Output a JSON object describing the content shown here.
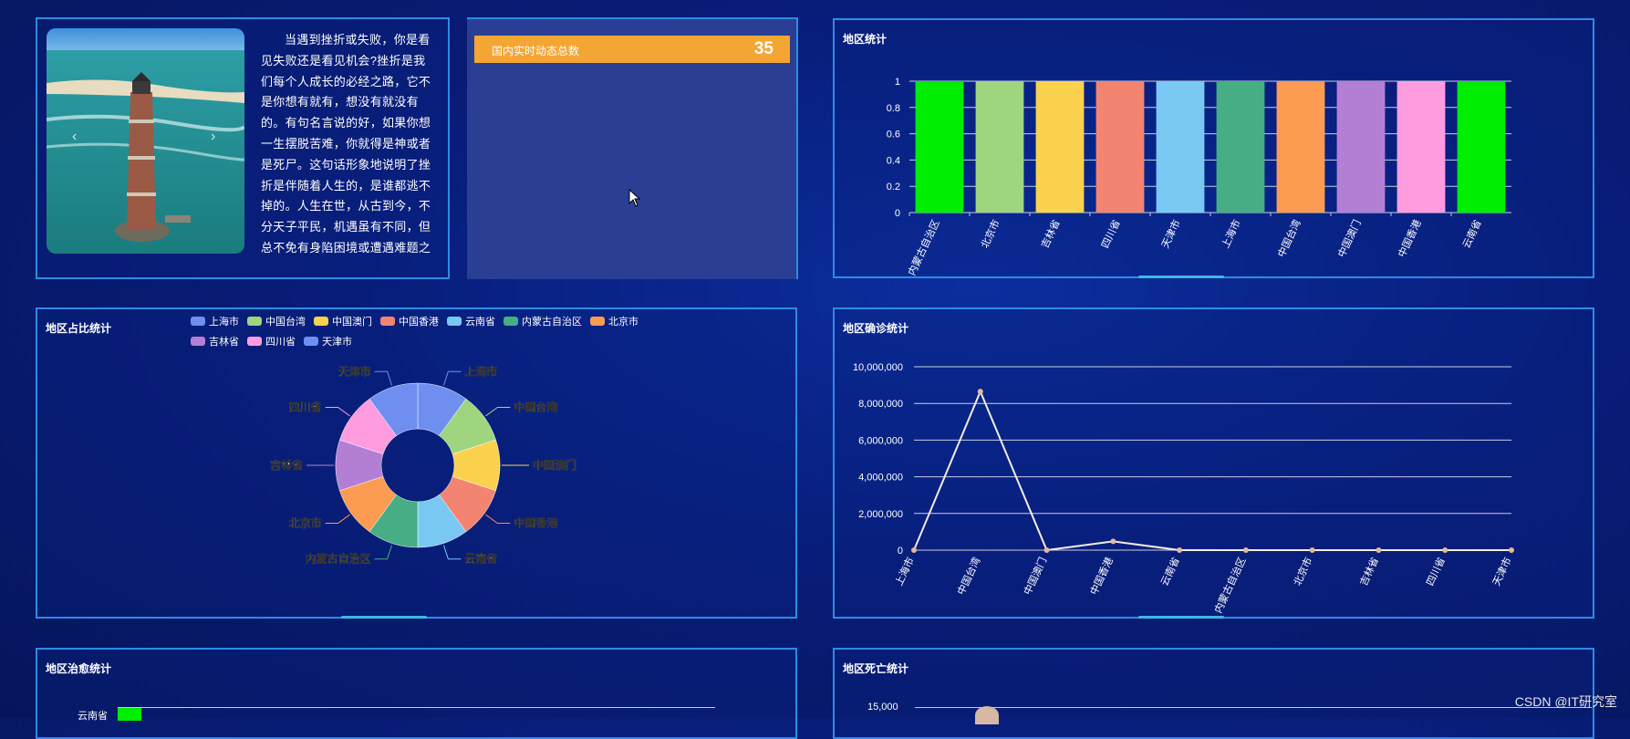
{
  "story_panel": {
    "text": "当遇到挫折或失败，你是看见失败还是看见机会?挫折是我们每个人成长的必经之路，它不是你想有就有，想没有就没有的。有句名言说的好，如果你想一生摆脱苦难，你就得是神或者是死尸。这句话形象地说明了挫折是伴随着人生的，是谁都逃不掉的。人生在世，从古到今，不分天子平民，机遇虽有不同，但总不免有身陷困境或遭遇难题之",
    "prev": "‹",
    "next": "›"
  },
  "realtime": {
    "label": "国内实时动态总数",
    "value": "35"
  },
  "bar_panel": {
    "title": "地区统计"
  },
  "pie_panel": {
    "title": "地区占比统计",
    "legend": [
      {
        "name": "上海市",
        "color": "#6e8ff0"
      },
      {
        "name": "中国台湾",
        "color": "#9fd57f"
      },
      {
        "name": "中国澳门",
        "color": "#fad24e"
      },
      {
        "name": "中国香港",
        "color": "#f38471"
      },
      {
        "name": "云南省",
        "color": "#79c8f4"
      },
      {
        "name": "内蒙古自治区",
        "color": "#46ad84"
      },
      {
        "name": "北京市",
        "color": "#fc9c52"
      },
      {
        "name": "吉林省",
        "color": "#b37fd5"
      },
      {
        "name": "四川省",
        "color": "#ff9ce0"
      },
      {
        "name": "天津市",
        "color": "#6e8ff0"
      }
    ]
  },
  "line_panel": {
    "title": "地区确诊统计"
  },
  "cure_panel": {
    "title": "地区治愈统计",
    "first_label": "云南省"
  },
  "death_panel": {
    "title": "地区死亡统计",
    "y_top": "15,000"
  },
  "watermark": "CSDN @IT研究室",
  "chart_data": [
    {
      "type": "bar",
      "title": "地区统计",
      "categories": [
        "内蒙古自治区",
        "北京市",
        "吉林省",
        "四川省",
        "天津市",
        "上海市",
        "中国台湾",
        "中国澳门",
        "中国香港",
        "云南省"
      ],
      "values": [
        1,
        1,
        1,
        1,
        1,
        1,
        1,
        1,
        1,
        1
      ],
      "colors": [
        "#00ee00",
        "#9fd57f",
        "#fad24e",
        "#f38471",
        "#79c8f4",
        "#46ad84",
        "#fc9c52",
        "#b37fd5",
        "#ff9ce0",
        "#00ee00"
      ],
      "ylim": [
        0,
        1
      ],
      "yticks": [
        "0",
        "0.2",
        "0.4",
        "0.6",
        "0.8",
        "1"
      ]
    },
    {
      "type": "pie",
      "title": "地区占比统计",
      "labels": [
        "上海市",
        "中国台湾",
        "中国澳门",
        "中国香港",
        "云南省",
        "内蒙古自治区",
        "北京市",
        "吉林省",
        "四川省",
        "天津市"
      ],
      "values": [
        1,
        1,
        1,
        1,
        1,
        1,
        1,
        1,
        1,
        1
      ],
      "colors": [
        "#6e8ff0",
        "#9fd57f",
        "#fad24e",
        "#f38471",
        "#79c8f4",
        "#46ad84",
        "#fc9c52",
        "#b37fd5",
        "#ff9ce0",
        "#6e8ff0"
      ]
    },
    {
      "type": "line",
      "title": "地区确诊统计",
      "categories": [
        "上海市",
        "中国台湾",
        "中国澳门",
        "中国香港",
        "云南省",
        "内蒙古自治区",
        "北京市",
        "吉林省",
        "四川省",
        "天津市"
      ],
      "values": [
        0,
        8650000,
        0,
        480000,
        0,
        0,
        0,
        0,
        0,
        0
      ],
      "ylim": [
        0,
        10000000
      ],
      "yticks": [
        "0",
        "2,000,000",
        "4,000,000",
        "6,000,000",
        "8,000,000",
        "10,000,000"
      ]
    }
  ]
}
